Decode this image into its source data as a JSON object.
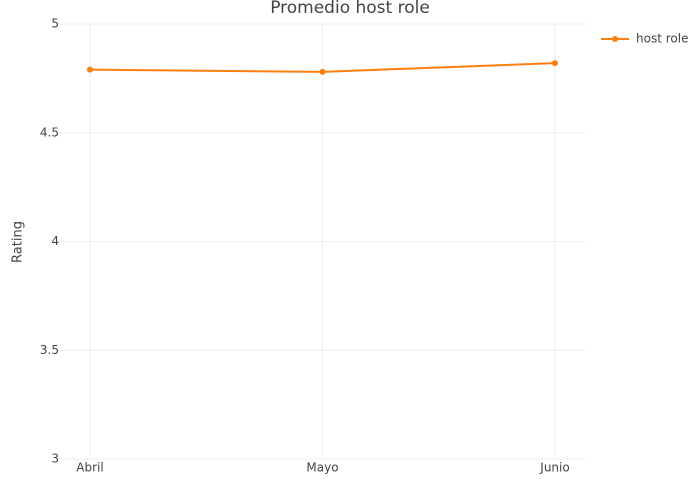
{
  "chart_data": {
    "type": "line",
    "title": "Promedio host role",
    "y_label": "Rating",
    "categories": [
      "Abril",
      "Mayo",
      "Junio"
    ],
    "series": [
      {
        "name": "host role",
        "color": "#ff7f0e",
        "values": [
          4.79,
          4.78,
          4.82
        ]
      }
    ],
    "ylim": [
      3,
      5
    ],
    "yticks": [
      3,
      3.5,
      4,
      4.5,
      5
    ],
    "grid": true,
    "legend": "top-right"
  }
}
